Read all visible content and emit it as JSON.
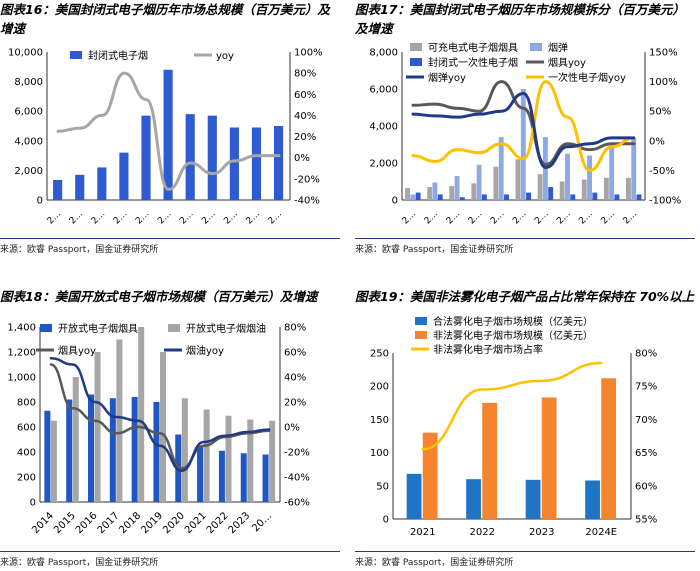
{
  "colors": {
    "blue": "#2E5BD1",
    "lightblue": "#8FA8E6",
    "gray": "#A6A6A6",
    "darkgray": "#595959",
    "navy": "#203A86",
    "yellow": "#FFC000",
    "ink_blue": "#1F58C5",
    "orange": "#F5842E",
    "legal_blue": "#1F74C6",
    "gold": "#FFC000"
  },
  "panels": [
    {
      "title": "图表16：美国封闭式电子烟历年市场总规模（百万美元）及增速",
      "source": "来源：欧睿 Passport，国金证券研究所"
    },
    {
      "title": "图表17：美国封闭式电子烟历年市场规模拆分（百万美元）及增速",
      "source": "来源：欧睿 Passport，国金证券研究所"
    },
    {
      "title": "图表18：美国开放式电子烟市场规模（百万美元）及增速",
      "source": "来源：欧睿 Passport，国金证券研究所"
    },
    {
      "title": "图表19：美国非法雾化电子烟产品占比常年保持在 70%以上",
      "source": "来源：欧睿 Passport，国金证券研究所"
    }
  ],
  "chart_data": [
    {
      "type": "bar",
      "title": "美国封闭式电子烟历年市场总规模（百万美元）及增速",
      "categories": [
        "2…",
        "2…",
        "2…",
        "2…",
        "2…",
        "2…",
        "2…",
        "2…",
        "2…",
        "2…",
        "2…"
      ],
      "series": [
        {
          "name": "封闭式电子烟",
          "type": "bar",
          "axis": "left",
          "values": [
            1350,
            1700,
            2200,
            3200,
            5700,
            8800,
            5800,
            5700,
            4900,
            4900,
            5000
          ]
        },
        {
          "name": "yoy",
          "type": "line",
          "axis": "right",
          "values": [
            25,
            28,
            40,
            80,
            55,
            -30,
            -5,
            -15,
            -3,
            2,
            2
          ]
        }
      ],
      "ylim": [
        0,
        10000
      ],
      "y_ticks": [
        "0",
        "2,000",
        "4,000",
        "6,000",
        "8,000",
        "10,000"
      ],
      "y2lim": [
        -40,
        100
      ],
      "y2_ticks": [
        "-40%",
        "-20%",
        "0%",
        "20%",
        "40%",
        "60%",
        "80%",
        "100%"
      ]
    },
    {
      "type": "bar",
      "title": "美国封闭式电子烟历年市场规模拆分（百万美元）及增速",
      "categories": [
        "2…",
        "2…",
        "2…",
        "2…",
        "2…",
        "2…",
        "2…",
        "2…",
        "2…",
        "2…",
        "2…"
      ],
      "series": [
        {
          "name": "可充电式电子烟烟具",
          "type": "bar",
          "axis": "left",
          "values": [
            650,
            700,
            750,
            900,
            1800,
            2200,
            1400,
            1000,
            1100,
            1200,
            1200
          ]
        },
        {
          "name": "烟弹",
          "type": "bar",
          "axis": "left",
          "values": [
            300,
            950,
            1300,
            1900,
            3400,
            6000,
            3400,
            2500,
            2400,
            2900,
            3300
          ]
        },
        {
          "name": "封闭式一次性电子烟",
          "type": "bar",
          "axis": "left",
          "values": [
            400,
            300,
            150,
            300,
            300,
            400,
            700,
            300,
            400,
            300,
            300
          ]
        },
        {
          "name": "烟具yoy",
          "type": "line",
          "axis": "right",
          "values": [
            60,
            62,
            55,
            50,
            100,
            55,
            -40,
            -5,
            -15,
            -5,
            -5
          ]
        },
        {
          "name": "一次性电子烟yoy",
          "type": "line",
          "axis": "right",
          "values": [
            -25,
            -35,
            -15,
            -20,
            -5,
            -30,
            100,
            40,
            -50,
            -10,
            5
          ]
        },
        {
          "name": "烟弹yoy",
          "type": "line",
          "axis": "right",
          "values": [
            45,
            42,
            40,
            45,
            50,
            80,
            -45,
            -10,
            -5,
            5,
            5
          ]
        }
      ],
      "ylim": [
        0,
        8000
      ],
      "y_ticks": [
        "0",
        "2,000",
        "4,000",
        "6,000",
        "8,000"
      ],
      "y2lim": [
        -100,
        150
      ],
      "y2_ticks": [
        "-100%",
        "-50%",
        "0%",
        "50%",
        "100%",
        "150%"
      ]
    },
    {
      "type": "bar",
      "title": "美国开放式电子烟市场规模（百万美元）及增速",
      "categories": [
        "2014",
        "2015",
        "2016",
        "2017",
        "2018",
        "2019",
        "2020",
        "2021",
        "2022",
        "2023",
        "20…"
      ],
      "series": [
        {
          "name": "开放式电子烟烟具",
          "type": "bar",
          "axis": "left",
          "values": [
            730,
            820,
            860,
            830,
            840,
            800,
            540,
            450,
            410,
            390,
            380
          ]
        },
        {
          "name": "开放式电子烟烟油",
          "type": "bar",
          "axis": "left",
          "values": [
            650,
            1000,
            1200,
            1300,
            1400,
            1200,
            830,
            740,
            690,
            660,
            650
          ]
        },
        {
          "name": "烟具yoy",
          "type": "line",
          "axis": "right",
          "values": [
            50,
            15,
            5,
            -5,
            0,
            -5,
            -33,
            -15,
            -8,
            -5,
            -3
          ]
        },
        {
          "name": "烟油yoy",
          "type": "line",
          "axis": "right",
          "values": [
            55,
            50,
            20,
            8,
            5,
            -15,
            -35,
            -12,
            -7,
            -4,
            -2
          ]
        }
      ],
      "ylim": [
        0,
        1400
      ],
      "y_ticks": [
        "0",
        "200",
        "400",
        "600",
        "800",
        "1,000",
        "1,200",
        "1,400"
      ],
      "y2lim": [
        -60,
        80
      ],
      "y2_ticks": [
        "-60%",
        "-40%",
        "-20%",
        "0%",
        "20%",
        "40%",
        "60%",
        "80%"
      ]
    },
    {
      "type": "bar",
      "title": "美国非法雾化电子烟产品占比常年保持在 70%以上",
      "categories": [
        "2021",
        "2022",
        "2023",
        "2024E"
      ],
      "series": [
        {
          "name": "合法雾化电子烟市场规模（亿美元）",
          "type": "bar",
          "axis": "left",
          "values": [
            68,
            60,
            59,
            58
          ]
        },
        {
          "name": "非法雾化电子烟市场规模（亿美元）",
          "type": "bar",
          "axis": "left",
          "values": [
            130,
            175,
            183,
            212
          ]
        },
        {
          "name": "非法雾化电子烟市场占率",
          "type": "line",
          "axis": "right",
          "values": [
            65.5,
            74.5,
            75.8,
            78.5
          ]
        }
      ],
      "ylim": [
        0,
        250
      ],
      "y_ticks": [
        "0",
        "50",
        "100",
        "150",
        "200",
        "250"
      ],
      "y2lim": [
        55,
        80
      ],
      "y2_ticks": [
        "55%",
        "60%",
        "65%",
        "70%",
        "75%",
        "80%"
      ]
    }
  ]
}
